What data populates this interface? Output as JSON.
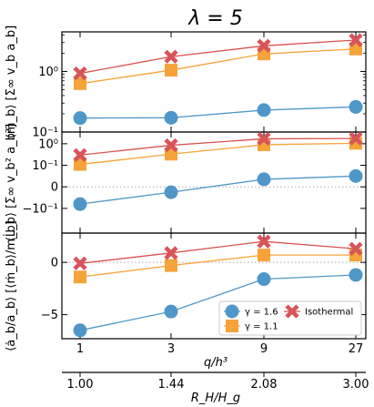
{
  "chart_data": {
    "type": "line",
    "title": "λ = 5",
    "x": {
      "categories": [
        "1",
        "3",
        "9",
        "27"
      ],
      "label": "q/h³",
      "secondary_ticks": [
        "1.00",
        "1.44",
        "2.08",
        "3.00"
      ],
      "secondary_label": "R_H/H_g"
    },
    "legend": {
      "placement": "lower-right of bottom panel",
      "entries": [
        "γ = 1.6",
        "γ = 1.1",
        "Isothermal"
      ]
    },
    "colors": {
      "gamma16": "#4f97c8",
      "gamma11": "#f6a33a",
      "isothermal": "#d9534f",
      "isothermal_marker": "#d95459",
      "refline": "#aaaaaa"
    },
    "panels": [
      {
        "ylabel": "⟨ṁ_b⟩ [Σ∞ v_b a_b]",
        "yscale": "log",
        "ylim": [
          0.1,
          4.5
        ],
        "yticks": [
          "10⁻¹",
          "10⁰"
        ],
        "series": [
          {
            "name": "γ = 1.6",
            "values": [
              0.17,
              0.172,
              0.23,
              0.26
            ]
          },
          {
            "name": "γ = 1.1",
            "values": [
              0.63,
              1.05,
              1.95,
              2.35
            ]
          },
          {
            "name": "Isothermal",
            "values": [
              0.93,
              1.75,
              2.65,
              3.3
            ]
          }
        ]
      },
      {
        "ylabel": "⟨L̇_b⟩ [Σ∞ v_b² a_b²]",
        "yscale": "symlog",
        "ylim": [
          -1.4,
          3.5
        ],
        "yticks": [
          "−10⁻¹",
          "0",
          "10⁻¹",
          "10⁰"
        ],
        "series": [
          {
            "name": "γ = 1.6",
            "values": [
              -0.08,
              -0.025,
              0.035,
              0.05
            ]
          },
          {
            "name": "γ = 1.1",
            "values": [
              0.11,
              0.33,
              0.9,
              1.05
            ]
          },
          {
            "name": "Isothermal",
            "values": [
              0.3,
              0.85,
              1.7,
              1.75
            ]
          }
        ]
      },
      {
        "ylabel": "⟨ȧ_b/a_b⟩ [⟨ṁ_b⟩/m_b]",
        "yscale": "linear",
        "ylim": [
          -7.3,
          2.8
        ],
        "yticks": [
          "−5",
          "0"
        ],
        "series": [
          {
            "name": "γ = 1.6",
            "values": [
              -6.5,
              -4.7,
              -1.6,
              -1.2
            ]
          },
          {
            "name": "γ = 1.1",
            "values": [
              -1.4,
              -0.3,
              0.7,
              0.7
            ]
          },
          {
            "name": "Isothermal",
            "values": [
              -0.1,
              0.9,
              2.0,
              1.3
            ]
          }
        ]
      }
    ]
  }
}
